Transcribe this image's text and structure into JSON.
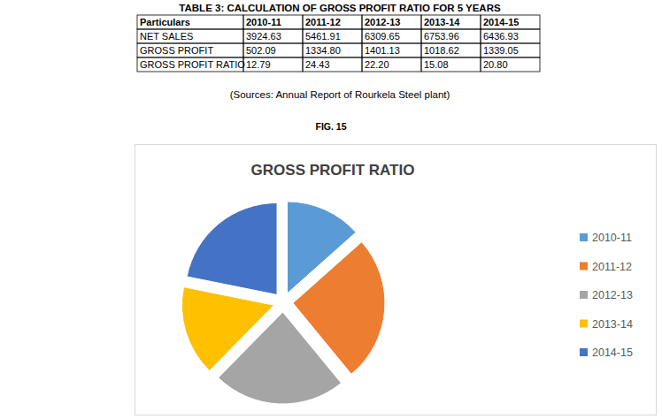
{
  "table": {
    "title": "TABLE 3: CALCULATION OF GROSS PROFIT RATIO FOR 5 YEARS",
    "header": [
      "Particulars",
      "2010-11",
      "2011-12",
      "2012-13",
      "2013-14",
      "2014-15"
    ],
    "rows": [
      [
        "NET SALES",
        "3924.63",
        "5461.91",
        "6309.65",
        "6753.96",
        "6436.93"
      ],
      [
        "GROSS PROFIT",
        "502.09",
        "1334.80",
        "1401.13",
        "1018.62",
        "1339.05"
      ],
      [
        "GROSS PROFIT RATIO",
        "12.79",
        "24.43",
        "22.20",
        "15.08",
        "20.80"
      ]
    ]
  },
  "source": "(Sources: Annual Report of Rourkela Steel plant)",
  "figure_label": "FIG. 15",
  "chart_data": {
    "type": "pie",
    "title": "GROSS PROFIT RATIO",
    "categories": [
      "2010-11",
      "2011-12",
      "2012-13",
      "2013-14",
      "2014-15"
    ],
    "values": [
      12.79,
      24.43,
      22.2,
      15.08,
      20.8
    ],
    "colors": [
      "#5b9bd5",
      "#ed7d31",
      "#a5a5a5",
      "#ffc000",
      "#4472c4"
    ],
    "legend": "right"
  }
}
